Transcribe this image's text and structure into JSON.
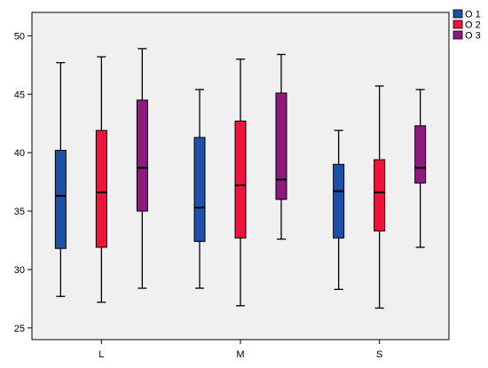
{
  "chart_data": {
    "type": "boxplot",
    "title": "",
    "xlabel": "",
    "ylabel": "",
    "categories": [
      "L",
      "M",
      "S"
    ],
    "ylim": [
      24,
      52
    ],
    "yticks": [
      25,
      30,
      35,
      40,
      45,
      50
    ],
    "grid": false,
    "legend_position": "top-right",
    "background": "#f0f0f0",
    "series": [
      {
        "name": "O 1",
        "color": "#1f4fa8",
        "boxes": [
          {
            "min": 27.7,
            "q1": 31.8,
            "median": 36.3,
            "q3": 40.2,
            "max": 47.7
          },
          {
            "min": 28.4,
            "q1": 32.4,
            "median": 35.3,
            "q3": 41.3,
            "max": 45.4
          },
          {
            "min": 28.3,
            "q1": 32.7,
            "median": 36.7,
            "q3": 39.0,
            "max": 41.9
          }
        ]
      },
      {
        "name": "O 2",
        "color": "#f0143c",
        "boxes": [
          {
            "min": 27.2,
            "q1": 31.9,
            "median": 36.6,
            "q3": 41.9,
            "max": 48.2
          },
          {
            "min": 26.9,
            "q1": 32.7,
            "median": 37.2,
            "q3": 42.7,
            "max": 48.0
          },
          {
            "min": 26.7,
            "q1": 33.3,
            "median": 36.6,
            "q3": 39.4,
            "max": 45.7
          }
        ]
      },
      {
        "name": "O 3",
        "color": "#8e1a80",
        "boxes": [
          {
            "min": 28.4,
            "q1": 35.0,
            "median": 38.7,
            "q3": 44.5,
            "max": 48.9
          },
          {
            "min": 32.6,
            "q1": 36.0,
            "median": 37.7,
            "q3": 45.1,
            "max": 48.4
          },
          {
            "min": 31.9,
            "q1": 37.4,
            "median": 38.7,
            "q3": 42.3,
            "max": 45.4
          }
        ]
      }
    ]
  }
}
